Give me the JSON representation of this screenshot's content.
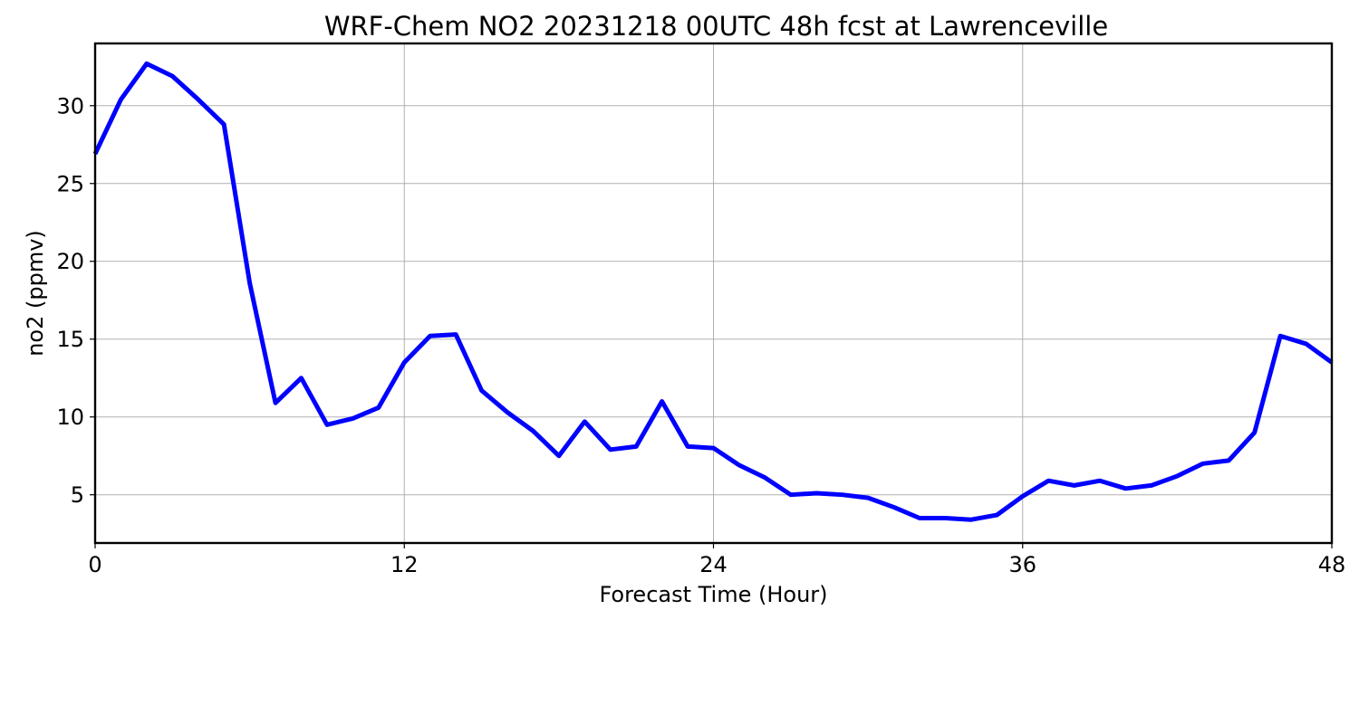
{
  "chart_data": {
    "type": "line",
    "title": "WRF-Chem NO2  20231218 00UTC 48h fcst at Lawrenceville",
    "xlabel": "Forecast Time (Hour)",
    "ylabel": "no2  (ppmv)",
    "xlim": [
      0,
      48
    ],
    "ylim": [
      1.9,
      34
    ],
    "xticks": [
      0,
      12,
      24,
      36,
      48
    ],
    "yticks": [
      5,
      10,
      15,
      20,
      25,
      30
    ],
    "grid": true,
    "legend": "none",
    "x": [
      0,
      1,
      2,
      3,
      4,
      5,
      6,
      7,
      8,
      9,
      10,
      11,
      12,
      13,
      14,
      15,
      16,
      17,
      18,
      19,
      20,
      21,
      22,
      23,
      24,
      25,
      26,
      27,
      28,
      29,
      30,
      31,
      32,
      33,
      34,
      35,
      36,
      37,
      38,
      39,
      40,
      41,
      42,
      43,
      44,
      45,
      46,
      47,
      48
    ],
    "series": [
      {
        "color": "#0000ff",
        "values": [
          26.9,
          30.4,
          32.7,
          31.9,
          30.4,
          28.8,
          18.6,
          10.9,
          12.5,
          9.5,
          9.9,
          10.6,
          13.5,
          15.2,
          15.3,
          11.7,
          10.3,
          9.1,
          7.5,
          9.7,
          7.9,
          8.1,
          11.0,
          8.1,
          8.0,
          6.9,
          6.1,
          5.0,
          5.1,
          5.0,
          4.8,
          4.2,
          3.5,
          3.5,
          3.4,
          3.7,
          4.9,
          5.9,
          5.6,
          5.9,
          5.4,
          5.6,
          6.2,
          7.0,
          7.2,
          9.0,
          15.2,
          14.7,
          13.5
        ]
      }
    ]
  }
}
